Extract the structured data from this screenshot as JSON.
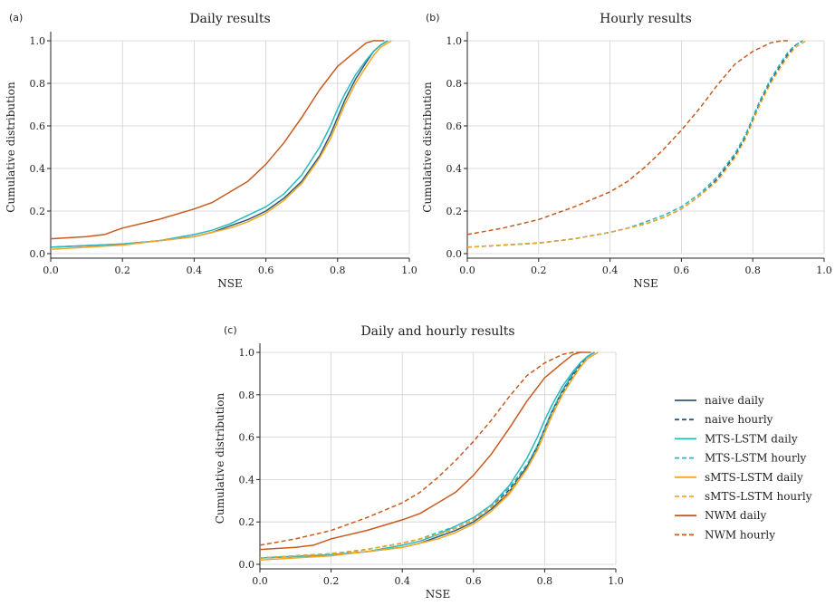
{
  "chart_data": [
    {
      "panel_label": "(a)",
      "type": "line",
      "title": "Daily results",
      "xlabel": "NSE",
      "ylabel": "Cumulative distribution",
      "xlim": [
        0,
        1.0
      ],
      "ylim": [
        0,
        1.0
      ],
      "xticks": [
        "0.0",
        "0.2",
        "0.4",
        "0.6",
        "0.8",
        "1.0"
      ],
      "yticks": [
        "0.0",
        "0.2",
        "0.4",
        "0.6",
        "0.8",
        "1.0"
      ],
      "grid": true,
      "series": [
        {
          "name": "naive daily",
          "color": "#2e5a7a",
          "dash": false,
          "x": [
            0.0,
            0.2,
            0.3,
            0.4,
            0.45,
            0.5,
            0.55,
            0.6,
            0.65,
            0.7,
            0.75,
            0.78,
            0.8,
            0.82,
            0.85,
            0.88,
            0.9,
            0.92,
            0.94
          ],
          "y": [
            0.03,
            0.045,
            0.06,
            0.08,
            0.1,
            0.13,
            0.16,
            0.2,
            0.26,
            0.34,
            0.46,
            0.56,
            0.64,
            0.72,
            0.82,
            0.9,
            0.95,
            0.98,
            1.0
          ]
        },
        {
          "name": "MTS-LSTM daily",
          "color": "#27b8c2",
          "dash": false,
          "x": [
            0.0,
            0.2,
            0.3,
            0.4,
            0.45,
            0.5,
            0.55,
            0.6,
            0.65,
            0.7,
            0.75,
            0.78,
            0.8,
            0.82,
            0.85,
            0.88,
            0.9,
            0.92,
            0.94
          ],
          "y": [
            0.03,
            0.045,
            0.06,
            0.09,
            0.11,
            0.14,
            0.18,
            0.22,
            0.28,
            0.37,
            0.5,
            0.6,
            0.68,
            0.75,
            0.84,
            0.91,
            0.95,
            0.98,
            1.0
          ]
        },
        {
          "name": "sMTS-LSTM daily",
          "color": "#f5a623",
          "dash": false,
          "x": [
            0.0,
            0.2,
            0.3,
            0.4,
            0.45,
            0.5,
            0.55,
            0.6,
            0.65,
            0.7,
            0.75,
            0.78,
            0.8,
            0.82,
            0.85,
            0.88,
            0.9,
            0.92,
            0.95
          ],
          "y": [
            0.02,
            0.04,
            0.06,
            0.08,
            0.1,
            0.12,
            0.15,
            0.19,
            0.25,
            0.33,
            0.45,
            0.54,
            0.62,
            0.7,
            0.8,
            0.88,
            0.93,
            0.97,
            1.0
          ]
        },
        {
          "name": "NWM daily",
          "color": "#c85a1e",
          "dash": false,
          "x": [
            0.0,
            0.1,
            0.15,
            0.2,
            0.3,
            0.4,
            0.45,
            0.5,
            0.55,
            0.6,
            0.65,
            0.7,
            0.75,
            0.8,
            0.85,
            0.88,
            0.9,
            0.93
          ],
          "y": [
            0.07,
            0.08,
            0.09,
            0.12,
            0.16,
            0.21,
            0.24,
            0.29,
            0.34,
            0.42,
            0.52,
            0.64,
            0.77,
            0.88,
            0.95,
            0.99,
            1.0,
            1.0
          ]
        }
      ]
    },
    {
      "panel_label": "(b)",
      "type": "line",
      "title": "Hourly results",
      "xlabel": "NSE",
      "ylabel": "Cumulative distribution",
      "xlim": [
        0,
        1.0
      ],
      "ylim": [
        0,
        1.0
      ],
      "xticks": [
        "0.0",
        "0.2",
        "0.4",
        "0.6",
        "0.8",
        "1.0"
      ],
      "yticks": [
        "0.0",
        "0.2",
        "0.4",
        "0.6",
        "0.8",
        "1.0"
      ],
      "grid": true,
      "series": [
        {
          "name": "naive hourly",
          "color": "#2e5a7a",
          "dash": true,
          "x": [
            0.0,
            0.2,
            0.3,
            0.4,
            0.45,
            0.5,
            0.55,
            0.6,
            0.65,
            0.7,
            0.75,
            0.78,
            0.8,
            0.82,
            0.85,
            0.88,
            0.9,
            0.92,
            0.94
          ],
          "y": [
            0.03,
            0.05,
            0.07,
            0.1,
            0.12,
            0.14,
            0.17,
            0.21,
            0.27,
            0.35,
            0.46,
            0.55,
            0.63,
            0.71,
            0.81,
            0.89,
            0.94,
            0.98,
            1.0
          ]
        },
        {
          "name": "MTS-LSTM hourly",
          "color": "#27b8c2",
          "dash": true,
          "x": [
            0.0,
            0.2,
            0.3,
            0.4,
            0.45,
            0.5,
            0.55,
            0.6,
            0.65,
            0.7,
            0.75,
            0.78,
            0.8,
            0.82,
            0.85,
            0.88,
            0.9,
            0.92,
            0.94
          ],
          "y": [
            0.03,
            0.05,
            0.07,
            0.1,
            0.12,
            0.15,
            0.18,
            0.22,
            0.28,
            0.36,
            0.47,
            0.56,
            0.64,
            0.72,
            0.82,
            0.9,
            0.95,
            0.98,
            1.0
          ]
        },
        {
          "name": "sMTS-LSTM hourly",
          "color": "#f5a623",
          "dash": true,
          "x": [
            0.0,
            0.2,
            0.3,
            0.4,
            0.45,
            0.5,
            0.55,
            0.6,
            0.65,
            0.7,
            0.75,
            0.78,
            0.8,
            0.82,
            0.85,
            0.88,
            0.9,
            0.92,
            0.95
          ],
          "y": [
            0.03,
            0.05,
            0.07,
            0.1,
            0.12,
            0.14,
            0.17,
            0.21,
            0.27,
            0.34,
            0.45,
            0.54,
            0.62,
            0.7,
            0.8,
            0.88,
            0.93,
            0.97,
            1.0
          ]
        },
        {
          "name": "NWM hourly",
          "color": "#c85a1e",
          "dash": true,
          "x": [
            0.0,
            0.1,
            0.2,
            0.3,
            0.4,
            0.45,
            0.5,
            0.55,
            0.6,
            0.65,
            0.7,
            0.75,
            0.8,
            0.85,
            0.88,
            0.9
          ],
          "y": [
            0.09,
            0.12,
            0.16,
            0.22,
            0.29,
            0.34,
            0.41,
            0.49,
            0.58,
            0.68,
            0.79,
            0.89,
            0.95,
            0.99,
            1.0,
            1.0
          ]
        }
      ]
    },
    {
      "panel_label": "(c)",
      "type": "line",
      "title": "Daily and hourly results",
      "xlabel": "NSE",
      "ylabel": "Cumulative distribution",
      "xlim": [
        0,
        1.0
      ],
      "ylim": [
        0,
        1.0
      ],
      "xticks": [
        "0.0",
        "0.2",
        "0.4",
        "0.6",
        "0.8",
        "1.0"
      ],
      "yticks": [
        "0.0",
        "0.2",
        "0.4",
        "0.6",
        "0.8",
        "1.0"
      ],
      "grid": true,
      "legend": "right",
      "series": [
        {
          "name": "naive daily",
          "color": "#2e5a7a",
          "dash": false,
          "x": [
            0.0,
            0.2,
            0.3,
            0.4,
            0.45,
            0.5,
            0.55,
            0.6,
            0.65,
            0.7,
            0.75,
            0.78,
            0.8,
            0.82,
            0.85,
            0.88,
            0.9,
            0.92,
            0.94
          ],
          "y": [
            0.03,
            0.045,
            0.06,
            0.08,
            0.1,
            0.13,
            0.16,
            0.2,
            0.26,
            0.34,
            0.46,
            0.56,
            0.64,
            0.72,
            0.82,
            0.9,
            0.95,
            0.98,
            1.0
          ]
        },
        {
          "name": "naive hourly",
          "color": "#2e5a7a",
          "dash": true,
          "x": [
            0.0,
            0.2,
            0.3,
            0.4,
            0.45,
            0.5,
            0.55,
            0.6,
            0.65,
            0.7,
            0.75,
            0.78,
            0.8,
            0.82,
            0.85,
            0.88,
            0.9,
            0.92,
            0.94
          ],
          "y": [
            0.03,
            0.05,
            0.07,
            0.1,
            0.12,
            0.14,
            0.17,
            0.21,
            0.27,
            0.35,
            0.46,
            0.55,
            0.63,
            0.71,
            0.81,
            0.89,
            0.94,
            0.98,
            1.0
          ]
        },
        {
          "name": "MTS-LSTM daily",
          "color": "#27b8c2",
          "dash": false,
          "x": [
            0.0,
            0.2,
            0.3,
            0.4,
            0.45,
            0.5,
            0.55,
            0.6,
            0.65,
            0.7,
            0.75,
            0.78,
            0.8,
            0.82,
            0.85,
            0.88,
            0.9,
            0.92,
            0.94
          ],
          "y": [
            0.03,
            0.045,
            0.06,
            0.09,
            0.11,
            0.14,
            0.18,
            0.22,
            0.28,
            0.37,
            0.5,
            0.6,
            0.68,
            0.75,
            0.84,
            0.91,
            0.95,
            0.98,
            1.0
          ]
        },
        {
          "name": "MTS-LSTM hourly",
          "color": "#27b8c2",
          "dash": true,
          "x": [
            0.0,
            0.2,
            0.3,
            0.4,
            0.45,
            0.5,
            0.55,
            0.6,
            0.65,
            0.7,
            0.75,
            0.78,
            0.8,
            0.82,
            0.85,
            0.88,
            0.9,
            0.92,
            0.94
          ],
          "y": [
            0.03,
            0.05,
            0.07,
            0.1,
            0.12,
            0.15,
            0.18,
            0.22,
            0.28,
            0.36,
            0.47,
            0.56,
            0.64,
            0.72,
            0.82,
            0.9,
            0.95,
            0.98,
            1.0
          ]
        },
        {
          "name": "sMTS-LSTM daily",
          "color": "#f5a623",
          "dash": false,
          "x": [
            0.0,
            0.2,
            0.3,
            0.4,
            0.45,
            0.5,
            0.55,
            0.6,
            0.65,
            0.7,
            0.75,
            0.78,
            0.8,
            0.82,
            0.85,
            0.88,
            0.9,
            0.92,
            0.95
          ],
          "y": [
            0.02,
            0.04,
            0.06,
            0.08,
            0.1,
            0.12,
            0.15,
            0.19,
            0.25,
            0.33,
            0.45,
            0.54,
            0.62,
            0.7,
            0.8,
            0.88,
            0.93,
            0.97,
            1.0
          ]
        },
        {
          "name": "sMTS-LSTM hourly",
          "color": "#f5a623",
          "dash": true,
          "x": [
            0.0,
            0.2,
            0.3,
            0.4,
            0.45,
            0.5,
            0.55,
            0.6,
            0.65,
            0.7,
            0.75,
            0.78,
            0.8,
            0.82,
            0.85,
            0.88,
            0.9,
            0.92,
            0.95
          ],
          "y": [
            0.03,
            0.05,
            0.07,
            0.1,
            0.12,
            0.14,
            0.17,
            0.21,
            0.27,
            0.34,
            0.45,
            0.54,
            0.62,
            0.7,
            0.8,
            0.88,
            0.93,
            0.97,
            1.0
          ]
        },
        {
          "name": "NWM daily",
          "color": "#c85a1e",
          "dash": false,
          "x": [
            0.0,
            0.1,
            0.15,
            0.2,
            0.3,
            0.4,
            0.45,
            0.5,
            0.55,
            0.6,
            0.65,
            0.7,
            0.75,
            0.8,
            0.85,
            0.88,
            0.9,
            0.93
          ],
          "y": [
            0.07,
            0.08,
            0.09,
            0.12,
            0.16,
            0.21,
            0.24,
            0.29,
            0.34,
            0.42,
            0.52,
            0.64,
            0.77,
            0.88,
            0.95,
            0.99,
            1.0,
            1.0
          ]
        },
        {
          "name": "NWM hourly",
          "color": "#c85a1e",
          "dash": true,
          "x": [
            0.0,
            0.1,
            0.2,
            0.3,
            0.4,
            0.45,
            0.5,
            0.55,
            0.6,
            0.65,
            0.7,
            0.75,
            0.8,
            0.85,
            0.88,
            0.9
          ],
          "y": [
            0.09,
            0.12,
            0.16,
            0.22,
            0.29,
            0.34,
            0.41,
            0.49,
            0.58,
            0.68,
            0.79,
            0.89,
            0.95,
            0.99,
            1.0,
            1.0
          ]
        }
      ]
    }
  ]
}
